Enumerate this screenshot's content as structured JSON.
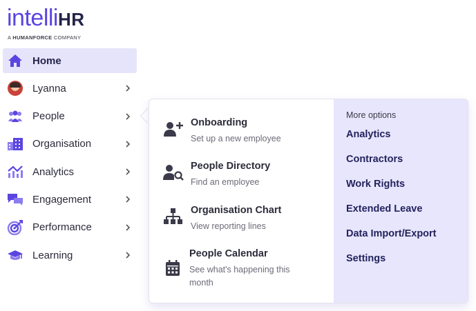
{
  "brand": {
    "logo_primary": "intelli",
    "logo_secondary": "HR",
    "tagline_prefix": "A",
    "tagline_brand": "HUMANFORCE",
    "tagline_suffix": "COMPANY",
    "accent_color": "#5b45e0"
  },
  "sidebar": {
    "items": [
      {
        "label": "Home",
        "icon": "home-icon",
        "active": true
      },
      {
        "label": "Lyanna",
        "icon": "avatar"
      },
      {
        "label": "People",
        "icon": "people-icon"
      },
      {
        "label": "Organisation",
        "icon": "building-icon"
      },
      {
        "label": "Analytics",
        "icon": "analytics-icon"
      },
      {
        "label": "Engagement",
        "icon": "chat-icon"
      },
      {
        "label": "Performance",
        "icon": "target-icon"
      },
      {
        "label": "Learning",
        "icon": "graduation-cap-icon"
      }
    ]
  },
  "flyout": {
    "entries": [
      {
        "title": "Onboarding",
        "description": "Set up a new employee",
        "icon": "add-user-icon"
      },
      {
        "title": "People Directory",
        "description": "Find an employee",
        "icon": "search-user-icon"
      },
      {
        "title": "Organisation Chart",
        "description": "View reporting lines",
        "icon": "org-chart-icon"
      },
      {
        "title": "People Calendar",
        "description": "See what's happening this month",
        "icon": "calendar-icon"
      }
    ],
    "more_options": {
      "title": "More options",
      "links": [
        "Analytics",
        "Contractors",
        "Work Rights",
        "Extended Leave",
        "Data Import/Export",
        "Settings"
      ]
    }
  }
}
